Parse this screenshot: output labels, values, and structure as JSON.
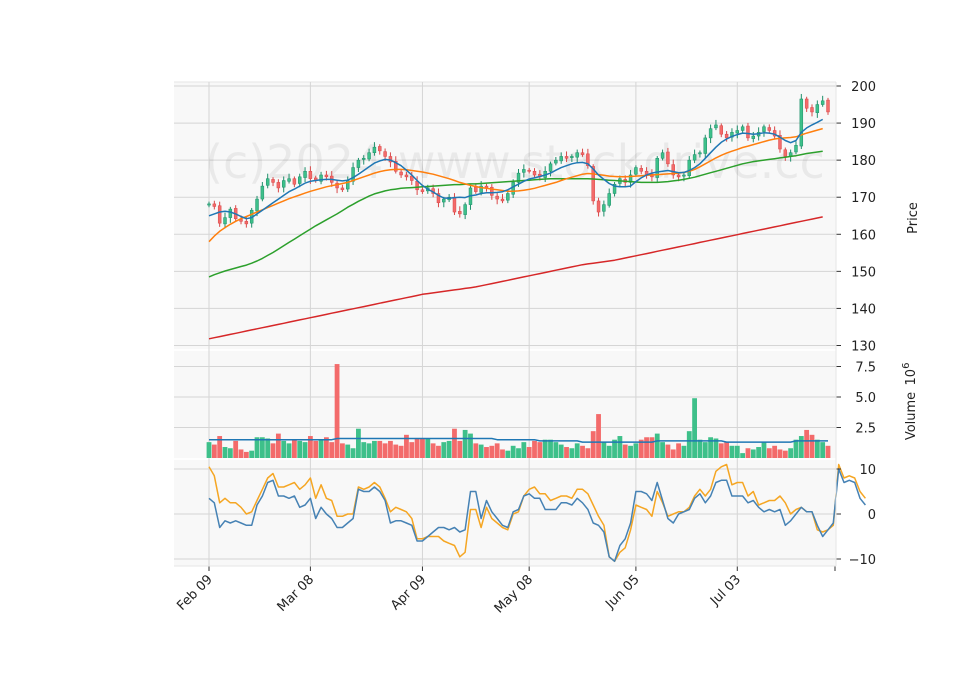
{
  "chart_data": {
    "type": "candlestick",
    "watermark": "(c)2024 www.stockdrive.cc",
    "x_tick_labels": [
      "Feb 09",
      "Mar 08",
      "Apr 09",
      "May 08",
      "Jun 05",
      "Jul 03"
    ],
    "x_tick_index": [
      0,
      19,
      40,
      60,
      80,
      99
    ],
    "colors": {
      "up": "#26a69a",
      "up_fill": "#3ec08a",
      "down": "#ef5350",
      "down_fill": "#f36b6b",
      "ma_short": "#1f77b4",
      "ma_mid": "#ff7f0e",
      "ma_long": "#2ca02c",
      "ma_longest": "#d62728",
      "volume_ma": "#1f77b4",
      "osc_fast": "#4682b4",
      "osc_slow": "#f5a623",
      "grid": "#d5d5d5",
      "panel_bg": "#f8f8f8"
    },
    "price_panel": {
      "ylabel": "Price",
      "ylim": [
        128.5,
        201
      ],
      "yticks": [
        130,
        140,
        150,
        160,
        170,
        180,
        190,
        200
      ],
      "close": [
        168.2,
        167.5,
        163.0,
        164.5,
        166.8,
        164.2,
        163.5,
        162.8,
        166.5,
        169.5,
        173.0,
        175.0,
        174.0,
        172.5,
        174.5,
        175.0,
        173.5,
        175.5,
        177.0,
        175.0,
        174.5,
        176.0,
        175.5,
        174.0,
        172.5,
        172.0,
        174.5,
        178.0,
        180.0,
        180.5,
        182.0,
        183.5,
        182.5,
        181.0,
        179.5,
        177.0,
        176.0,
        175.5,
        174.5,
        172.0,
        171.5,
        172.5,
        171.0,
        168.5,
        169.5,
        170.0,
        166.0,
        165.5,
        168.0,
        172.5,
        171.5,
        173.0,
        172.5,
        170.5,
        169.5,
        169.0,
        171.0,
        174.0,
        176.5,
        177.5,
        177.0,
        176.0,
        175.5,
        177.0,
        179.0,
        180.0,
        181.0,
        180.5,
        181.0,
        182.0,
        181.5,
        178.5,
        169.0,
        166.0,
        168.0,
        171.0,
        173.5,
        175.0,
        174.0,
        176.0,
        178.0,
        177.0,
        176.0,
        175.5,
        180.5,
        182.0,
        179.0,
        176.0,
        175.5,
        176.0,
        180.0,
        181.5,
        182.0,
        186.0,
        188.5,
        189.5,
        187.0,
        186.0,
        187.5,
        188.0,
        189.0,
        186.0,
        186.5,
        187.5,
        189.0,
        188.0,
        186.5,
        183.0,
        181.0,
        182.0,
        184.0,
        196.5,
        194.0,
        193.0,
        195.0,
        196.0,
        193.0
      ],
      "ma_short": [
        165.0,
        165.5,
        166.0,
        166.2,
        166.0,
        165.5,
        164.8,
        164.2,
        164.5,
        165.5,
        166.5,
        167.5,
        168.5,
        169.5,
        170.5,
        171.5,
        172.2,
        173.0,
        173.8,
        174.3,
        174.5,
        174.7,
        174.8,
        174.8,
        174.6,
        174.4,
        174.6,
        175.3,
        176.2,
        177.2,
        178.2,
        179.2,
        179.8,
        180.2,
        180.0,
        179.3,
        178.5,
        177.3,
        176.0,
        174.5,
        173.2,
        172.2,
        171.4,
        170.5,
        169.8,
        169.7,
        169.9,
        170.0,
        169.9,
        170.4,
        170.6,
        171.0,
        171.2,
        171.2,
        171.3,
        171.5,
        172.0,
        172.8,
        173.5,
        174.3,
        174.9,
        175.2,
        175.6,
        176.0,
        176.5,
        177.3,
        178.0,
        178.5,
        179.0,
        179.3,
        179.4,
        179.0,
        177.6,
        176.0,
        174.8,
        173.7,
        173.0,
        172.8,
        172.8,
        173.0,
        174.2,
        175.2,
        176.0,
        176.5,
        176.8,
        177.0,
        177.2,
        176.9,
        176.6,
        176.7,
        177.2,
        178.0,
        179.0,
        180.5,
        182.0,
        183.5,
        184.8,
        185.7,
        186.4,
        186.9,
        187.3,
        187.2,
        187.0,
        187.1,
        187.4,
        187.3,
        187.0,
        186.2,
        185.3,
        184.7,
        185.3,
        187.5,
        188.7,
        189.5,
        190.2,
        191.0
      ],
      "ma_mid": [
        158.0,
        159.5,
        160.8,
        161.8,
        162.7,
        163.5,
        164.2,
        164.8,
        165.4,
        166.0,
        166.6,
        167.2,
        167.8,
        168.4,
        169.0,
        169.6,
        170.1,
        170.6,
        171.1,
        171.6,
        172.0,
        172.4,
        172.8,
        173.1,
        173.4,
        173.7,
        174.0,
        174.5,
        175.0,
        175.5,
        176.0,
        176.5,
        176.9,
        177.2,
        177.4,
        177.5,
        177.5,
        177.4,
        177.2,
        177.0,
        176.8,
        176.5,
        176.2,
        175.8,
        175.4,
        175.0,
        174.5,
        174.0,
        173.6,
        173.2,
        172.9,
        172.6,
        172.4,
        172.2,
        172.0,
        171.8,
        171.6,
        171.6,
        171.7,
        171.9,
        172.1,
        172.4,
        172.8,
        173.2,
        173.6,
        174.0,
        174.5,
        175.0,
        175.4,
        175.8,
        176.2,
        176.4,
        176.3,
        176.1,
        175.9,
        175.7,
        175.6,
        175.5,
        175.5,
        175.6,
        175.7,
        175.8,
        175.9,
        176.0,
        176.1,
        176.2,
        176.3,
        176.4,
        176.5,
        176.7,
        177.0,
        177.5,
        178.2,
        179.0,
        179.8,
        180.6,
        181.3,
        181.9,
        182.4,
        182.9,
        183.4,
        183.8,
        184.2,
        184.6,
        185.0,
        185.4,
        185.7,
        185.9,
        186.0,
        186.1,
        186.3,
        186.8,
        187.3,
        187.7,
        188.1,
        188.5
      ],
      "ma_long": [
        148.5,
        149.1,
        149.6,
        150.1,
        150.5,
        150.9,
        151.3,
        151.7,
        152.2,
        152.8,
        153.5,
        154.3,
        155.1,
        156.0,
        156.9,
        157.8,
        158.7,
        159.6,
        160.5,
        161.4,
        162.3,
        163.1,
        163.9,
        164.7,
        165.5,
        166.4,
        167.3,
        168.1,
        168.9,
        169.6,
        170.3,
        170.9,
        171.3,
        171.7,
        172.0,
        172.2,
        172.4,
        172.5,
        172.6,
        172.7,
        172.8,
        172.9,
        173.0,
        173.1,
        173.2,
        173.3,
        173.4,
        173.4,
        173.5,
        173.6,
        173.6,
        173.7,
        173.8,
        173.9,
        174.0,
        174.1,
        174.2,
        174.3,
        174.4,
        174.5,
        174.6,
        174.7,
        174.8,
        174.9,
        175.0,
        175.0,
        175.0,
        175.0,
        175.0,
        175.0,
        175.0,
        175.0,
        174.9,
        174.8,
        174.7,
        174.6,
        174.5,
        174.4,
        174.3,
        174.2,
        174.1,
        174.0,
        174.0,
        174.0,
        174.0,
        174.1,
        174.2,
        174.4,
        174.6,
        174.8,
        175.1,
        175.4,
        175.8,
        176.2,
        176.6,
        177.0,
        177.4,
        177.8,
        178.2,
        178.6,
        179.0,
        179.3,
        179.6,
        179.8,
        180.0,
        180.2,
        180.4,
        180.6,
        180.8,
        181.0,
        181.2,
        181.5,
        181.8,
        182.0,
        182.2,
        182.4
      ],
      "ma_longest": [
        131.8,
        132.1,
        132.4,
        132.7,
        133.0,
        133.3,
        133.6,
        133.9,
        134.2,
        134.5,
        134.8,
        135.1,
        135.4,
        135.7,
        136.0,
        136.3,
        136.6,
        136.9,
        137.2,
        137.5,
        137.8,
        138.1,
        138.4,
        138.7,
        139.0,
        139.3,
        139.6,
        139.9,
        140.2,
        140.5,
        140.8,
        141.1,
        141.4,
        141.7,
        142.0,
        142.3,
        142.6,
        142.9,
        143.2,
        143.5,
        143.8,
        144.0,
        144.2,
        144.4,
        144.6,
        144.8,
        145.0,
        145.2,
        145.4,
        145.6,
        145.8,
        146.1,
        146.4,
        146.7,
        147.0,
        147.3,
        147.6,
        147.9,
        148.2,
        148.5,
        148.8,
        149.1,
        149.4,
        149.7,
        150.0,
        150.3,
        150.6,
        150.9,
        151.2,
        151.5,
        151.8,
        152.0,
        152.2,
        152.4,
        152.6,
        152.8,
        153.0,
        153.3,
        153.6,
        153.9,
        154.2,
        154.5,
        154.8,
        155.1,
        155.4,
        155.7,
        156.0,
        156.3,
        156.6,
        156.9,
        157.2,
        157.5,
        157.8,
        158.1,
        158.4,
        158.7,
        159.0,
        159.3,
        159.6,
        159.9,
        160.2,
        160.5,
        160.8,
        161.1,
        161.4,
        161.7,
        162.0,
        162.3,
        162.6,
        162.9,
        163.2,
        163.5,
        163.8,
        164.1,
        164.4,
        164.7
      ]
    },
    "volume_panel": {
      "ylabel": "Volume",
      "ylabel_multiplier": "10^6",
      "ylim": [
        0,
        8.4
      ],
      "yticks": [
        2.5,
        5.0,
        7.5
      ],
      "ytick_labels": [
        "2.5",
        "5.0",
        "7.5"
      ],
      "values": [
        1.3,
        1.1,
        1.8,
        0.9,
        0.8,
        1.4,
        0.7,
        0.5,
        0.6,
        1.7,
        1.7,
        1.6,
        1.2,
        2.0,
        1.4,
        1.2,
        1.5,
        1.4,
        1.3,
        1.8,
        1.4,
        1.5,
        1.7,
        1.3,
        7.7,
        1.2,
        1.1,
        0.8,
        2.4,
        1.3,
        1.2,
        1.4,
        1.4,
        1.2,
        1.4,
        1.1,
        1.0,
        1.9,
        1.3,
        1.6,
        1.6,
        1.6,
        1.2,
        1.0,
        1.3,
        1.4,
        2.4,
        1.4,
        2.3,
        2.0,
        1.2,
        1.1,
        0.9,
        1.0,
        1.2,
        0.7,
        0.6,
        1.0,
        0.8,
        1.3,
        0.9,
        1.4,
        1.3,
        1.5,
        1.5,
        1.3,
        1.1,
        0.9,
        0.8,
        1.2,
        1.0,
        0.8,
        2.2,
        3.6,
        1.3,
        1.0,
        1.5,
        1.8,
        1.1,
        1.0,
        1.2,
        1.5,
        1.7,
        1.7,
        2.0,
        1.3,
        1.1,
        0.7,
        1.2,
        1.0,
        2.2,
        4.9,
        1.5,
        1.3,
        1.7,
        1.6,
        1.2,
        1.3,
        1.0,
        1.0,
        0.4,
        0.8,
        0.7,
        0.9,
        1.3,
        0.8,
        1.0,
        0.7,
        0.6,
        0.8,
        1.5,
        1.8,
        2.3,
        1.9,
        1.5,
        1.3,
        1.0
      ],
      "ma": [
        1.5,
        1.5,
        1.5,
        1.5,
        1.5,
        1.5,
        1.5,
        1.5,
        1.5,
        1.5,
        1.5,
        1.5,
        1.5,
        1.5,
        1.5,
        1.5,
        1.5,
        1.5,
        1.5,
        1.5,
        1.5,
        1.5,
        1.5,
        1.5,
        1.6,
        1.6,
        1.6,
        1.6,
        1.6,
        1.6,
        1.6,
        1.6,
        1.6,
        1.6,
        1.6,
        1.6,
        1.6,
        1.6,
        1.6,
        1.6,
        1.6,
        1.6,
        1.6,
        1.6,
        1.6,
        1.6,
        1.6,
        1.6,
        1.6,
        1.6,
        1.6,
        1.6,
        1.6,
        1.6,
        1.5,
        1.5,
        1.5,
        1.5,
        1.5,
        1.5,
        1.5,
        1.5,
        1.4,
        1.4,
        1.4,
        1.4,
        1.4,
        1.4,
        1.4,
        1.4,
        1.3,
        1.3,
        1.3,
        1.3,
        1.3,
        1.3,
        1.3,
        1.3,
        1.3,
        1.3,
        1.3,
        1.3,
        1.3,
        1.3,
        1.4,
        1.4,
        1.4,
        1.4,
        1.4,
        1.4,
        1.4,
        1.4,
        1.4,
        1.4,
        1.4,
        1.4,
        1.4,
        1.3,
        1.3,
        1.3,
        1.3,
        1.3,
        1.3,
        1.3,
        1.3,
        1.3,
        1.3,
        1.3,
        1.3,
        1.3,
        1.4,
        1.4,
        1.4,
        1.4,
        1.4,
        1.4,
        1.4
      ]
    },
    "oscillator_panel": {
      "ylim": [
        -11.8,
        11.5
      ],
      "yticks": [
        -10,
        0,
        10
      ],
      "ytick_labels": [
        "−10",
        "0",
        "10"
      ],
      "fast": [
        3.5,
        2.5,
        -3.0,
        -1.5,
        -2.0,
        -1.5,
        -2.0,
        -2.5,
        -2.5,
        2.0,
        4.0,
        7.0,
        7.5,
        4.0,
        4.0,
        3.5,
        4.0,
        1.5,
        2.0,
        3.5,
        -1.0,
        1.5,
        0.0,
        -1.0,
        -3.0,
        -3.0,
        -2.0,
        -1.0,
        5.5,
        5.0,
        5.0,
        6.0,
        5.0,
        3.0,
        -2.0,
        -1.5,
        -1.5,
        -2.0,
        -2.5,
        -6.0,
        -6.0,
        -5.0,
        -4.0,
        -3.0,
        -3.0,
        -3.5,
        -3.0,
        -4.0,
        -3.5,
        5.0,
        5.0,
        -1.0,
        3.0,
        0.5,
        -1.0,
        -2.5,
        -3.0,
        0.5,
        1.0,
        4.0,
        4.5,
        3.5,
        3.5,
        1.0,
        1.0,
        1.0,
        2.5,
        2.5,
        2.0,
        3.5,
        2.5,
        1.0,
        -2.0,
        -2.5,
        -4.0,
        -9.5,
        -10.5,
        -7.0,
        -5.5,
        -2.0,
        5.0,
        5.0,
        4.5,
        3.0,
        7.0,
        3.0,
        -1.0,
        -2.0,
        0.0,
        0.5,
        1.0,
        3.5,
        4.5,
        2.5,
        4.0,
        7.0,
        7.5,
        7.5,
        4.0,
        4.0,
        4.0,
        2.5,
        3.0,
        1.5,
        0.5,
        1.0,
        0.5,
        1.0,
        -2.5,
        -1.5,
        0.0,
        1.5,
        0.5,
        0.5,
        -2.5,
        -5.0,
        -3.5,
        -2.0,
        10.0,
        7.0,
        7.5,
        7.0,
        3.5,
        2.0
      ],
      "slow": [
        10.5,
        8.5,
        2.5,
        3.5,
        2.5,
        2.5,
        1.5,
        0.0,
        0.5,
        3.0,
        5.5,
        8.0,
        9.0,
        6.0,
        6.0,
        6.5,
        7.0,
        5.5,
        6.5,
        8.0,
        3.5,
        6.5,
        3.5,
        3.0,
        -0.5,
        -0.5,
        0.0,
        0.0,
        6.0,
        5.5,
        6.0,
        7.0,
        6.0,
        3.5,
        0.5,
        1.5,
        1.0,
        0.5,
        -1.0,
        -5.5,
        -5.5,
        -5.0,
        -5.0,
        -5.0,
        -6.0,
        -6.5,
        -7.0,
        -9.5,
        -8.5,
        1.0,
        1.0,
        -3.0,
        1.5,
        -1.0,
        -2.0,
        -3.0,
        -3.5,
        0.0,
        0.5,
        4.0,
        5.5,
        6.0,
        4.5,
        4.5,
        3.0,
        3.5,
        4.0,
        4.0,
        3.5,
        5.5,
        5.5,
        4.5,
        2.0,
        -0.5,
        -2.5,
        -9.5,
        -10.5,
        -8.5,
        -7.5,
        -3.5,
        2.0,
        1.5,
        1.0,
        -0.5,
        5.0,
        2.5,
        -0.5,
        0.0,
        0.5,
        0.5,
        1.5,
        4.0,
        5.5,
        4.0,
        5.5,
        9.5,
        10.5,
        11.0,
        6.5,
        7.0,
        7.0,
        4.0,
        5.0,
        2.0,
        2.5,
        3.0,
        3.0,
        4.0,
        2.5,
        0.0,
        1.0,
        1.5,
        0.5,
        0.5,
        -3.5,
        -4.0,
        -3.5,
        -2.5,
        11.0,
        8.0,
        8.5,
        8.0,
        5.0,
        3.5
      ]
    }
  }
}
